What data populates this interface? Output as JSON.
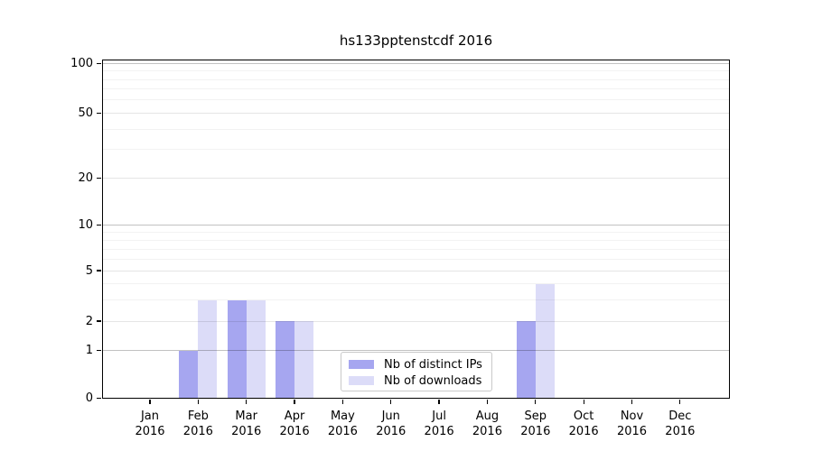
{
  "title": "hs133pptenstcdf 2016",
  "legend": {
    "items": [
      {
        "label": "Nb of distinct IPs",
        "color": "#a6a6f0"
      },
      {
        "label": "Nb of downloads",
        "color": "#dcdcf8"
      }
    ]
  },
  "axis": {
    "y_tick_values": [
      0,
      1,
      2,
      5,
      10,
      20,
      50,
      100
    ],
    "minor_grid_values": [
      3,
      4,
      6,
      7,
      8,
      9,
      30,
      40,
      60,
      70,
      80,
      90
    ],
    "months": [
      "Jan",
      "Feb",
      "Mar",
      "Apr",
      "May",
      "Jun",
      "Jul",
      "Aug",
      "Sep",
      "Oct",
      "Nov",
      "Dec"
    ],
    "year": "2016"
  },
  "chart_data": {
    "type": "bar",
    "title": "hs133pptenstcdf 2016",
    "categories": [
      "Jan 2016",
      "Feb 2016",
      "Mar 2016",
      "Apr 2016",
      "May 2016",
      "Jun 2016",
      "Jul 2016",
      "Aug 2016",
      "Sep 2016",
      "Oct 2016",
      "Nov 2016",
      "Dec 2016"
    ],
    "series": [
      {
        "name": "Nb of distinct IPs",
        "color": "#a6a6f0",
        "values": [
          0,
          1,
          3,
          2,
          0,
          0,
          0,
          0,
          2,
          0,
          0,
          0
        ]
      },
      {
        "name": "Nb of downloads",
        "color": "#dcdcf8",
        "values": [
          0,
          3,
          3,
          2,
          0,
          0,
          0,
          0,
          4,
          0,
          0,
          0
        ]
      }
    ],
    "ylabel": "",
    "xlabel": "",
    "yscale": "log10(value+1)",
    "yticks": [
      0,
      1,
      2,
      5,
      10,
      20,
      50,
      100
    ],
    "ylim": [
      0,
      110
    ],
    "grid": true,
    "legend_position": "lower center"
  }
}
